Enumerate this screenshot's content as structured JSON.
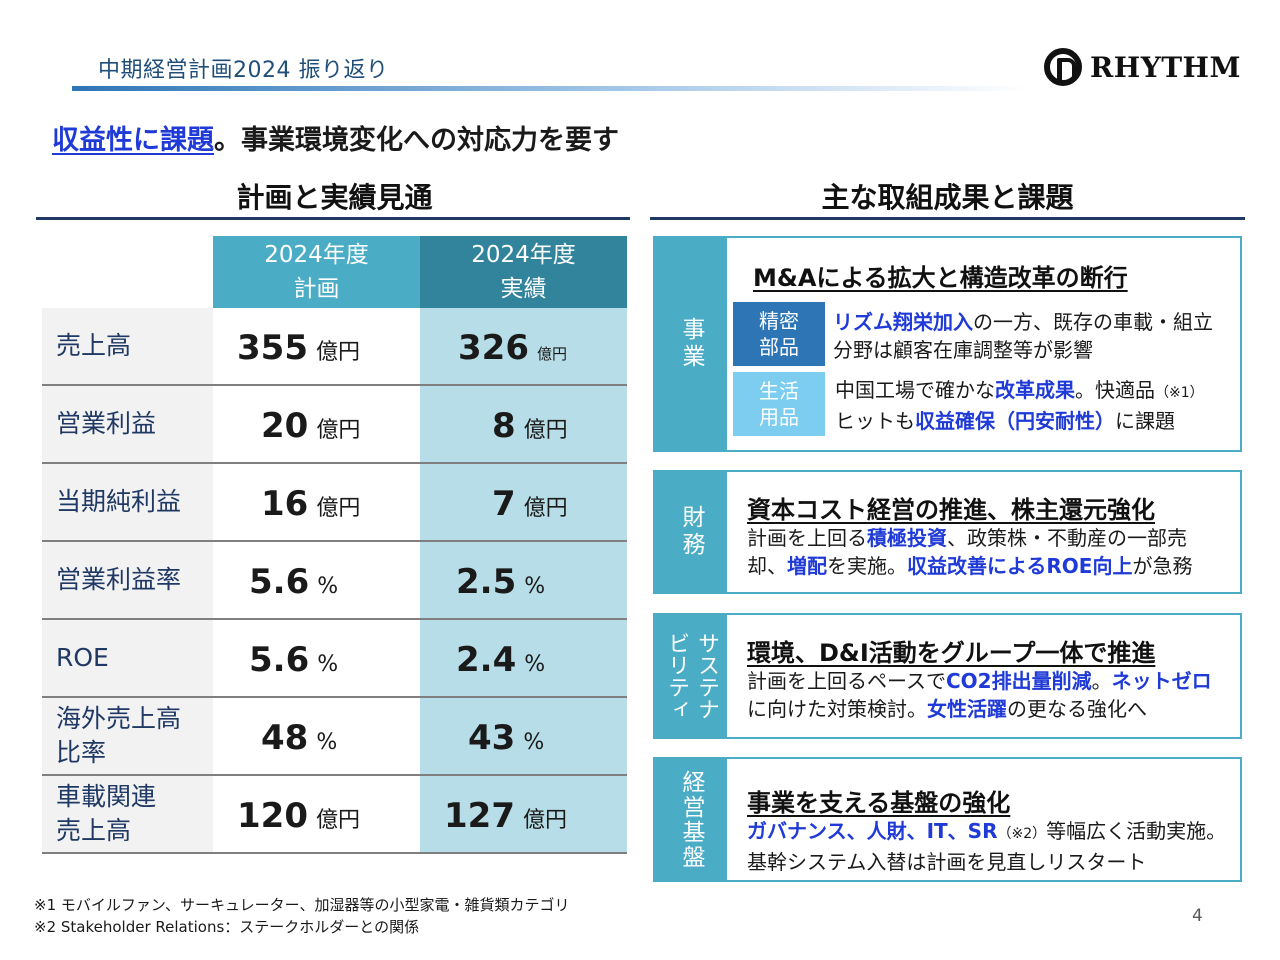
{
  "header": {
    "title": "中期経営計画2024 振り返り",
    "brand": "RHYTHM"
  },
  "headline": {
    "blue": "収益性に課題",
    "rest": "。事業環境変化への対応力を要す"
  },
  "left_section": {
    "title": "計画と実績見通",
    "col_plan": [
      "2024年度",
      "計画"
    ],
    "col_actual": [
      "2024年度",
      "実績"
    ],
    "rows": [
      {
        "label": "売上高",
        "plan": "355",
        "plan_unit": "億円",
        "actual": "326",
        "actual_unit": "億円"
      },
      {
        "label": "営業利益",
        "plan": "20",
        "plan_unit": "億円",
        "actual": "8",
        "actual_unit": "億円"
      },
      {
        "label": "当期純利益",
        "plan": "16",
        "plan_unit": "億円",
        "actual": "7",
        "actual_unit": "億円"
      },
      {
        "label": "営業利益率",
        "plan": "5.6",
        "plan_unit": "%",
        "actual": "2.5",
        "actual_unit": "%"
      },
      {
        "label": "ROE",
        "plan": "5.6",
        "plan_unit": "%",
        "actual": "2.4",
        "actual_unit": "%"
      },
      {
        "label": "海外売上高比率",
        "label_l1": "海外売上高",
        "label_l2": "比率",
        "plan": "48",
        "plan_unit": "%",
        "actual": "43",
        "actual_unit": "%"
      },
      {
        "label": "車載関連売上高",
        "label_l1": "車載関連",
        "label_l2": "売上高",
        "plan": "120",
        "plan_unit": "億円",
        "actual": "127",
        "actual_unit": "億円"
      }
    ]
  },
  "right_section": {
    "title": "主な取組成果と課題",
    "cards": [
      {
        "tag": "事業",
        "heading": "M&Aによる拡大と構造改革の断行",
        "sub1": {
          "tag_l1": "精密",
          "tag_l2": "部品",
          "em": "リズム翔栄加入",
          "t1": "の一方、既存の車載・組立",
          "t2": "分野は顧客在庫調整等が影響"
        },
        "sub2": {
          "tag_l1": "生活",
          "tag_l2": "用品",
          "t1": "中国工場で確かな",
          "em1": "改革成果",
          "t2": "。快適品",
          "note": "（※1）",
          "t3": "ヒットも",
          "em2": "収益確保（円安耐性）",
          "t4": "に課題"
        }
      },
      {
        "tag": "財務",
        "heading": "資本コスト経営の推進、株主還元強化",
        "t1": "計画を上回る",
        "em1": "積極投資",
        "t2": "、政策株・不動産の一部売",
        "t3": "却、",
        "em2": "増配",
        "t4": "を実施。",
        "em3": "収益改善によるROE向上",
        "t5": "が急務"
      },
      {
        "tag_col1": "サステ",
        "tag_col2": "ビリティナ",
        "tag_a": "サステナ",
        "tag_b": "ビリティ",
        "heading": "環境、D&I活動をグループ一体で推進",
        "t1": "計画を上回るペースで",
        "em1": "CO2排出量削減",
        "t2": "。",
        "em2": "ネットゼロ",
        "t3": "に向けた対策検討。",
        "em3": "女性活躍",
        "t4": "の更なる強化へ"
      },
      {
        "tag": "経営基盤",
        "heading": "事業を支える基盤の強化",
        "em1": "ガバナンス、人財、IT、SR",
        "note": "（※2）",
        "t1": "等幅広く活動実施。",
        "t2": "基幹システム入替は計画を見直しリスタート"
      }
    ]
  },
  "footnotes": [
    "※1 モバイルファン、サーキュレーター、加湿器等の小型家電・雑貨類カテゴリ",
    "※2 Stakeholder Relations：ステークホルダーとの関係"
  ],
  "page_number": "4",
  "colors": {
    "accent_blue": "#1f3ad6",
    "teal": "#4bacc6",
    "teal_dark": "#31849b",
    "teal_light": "#b7dee8",
    "navy": "#1f3864"
  }
}
